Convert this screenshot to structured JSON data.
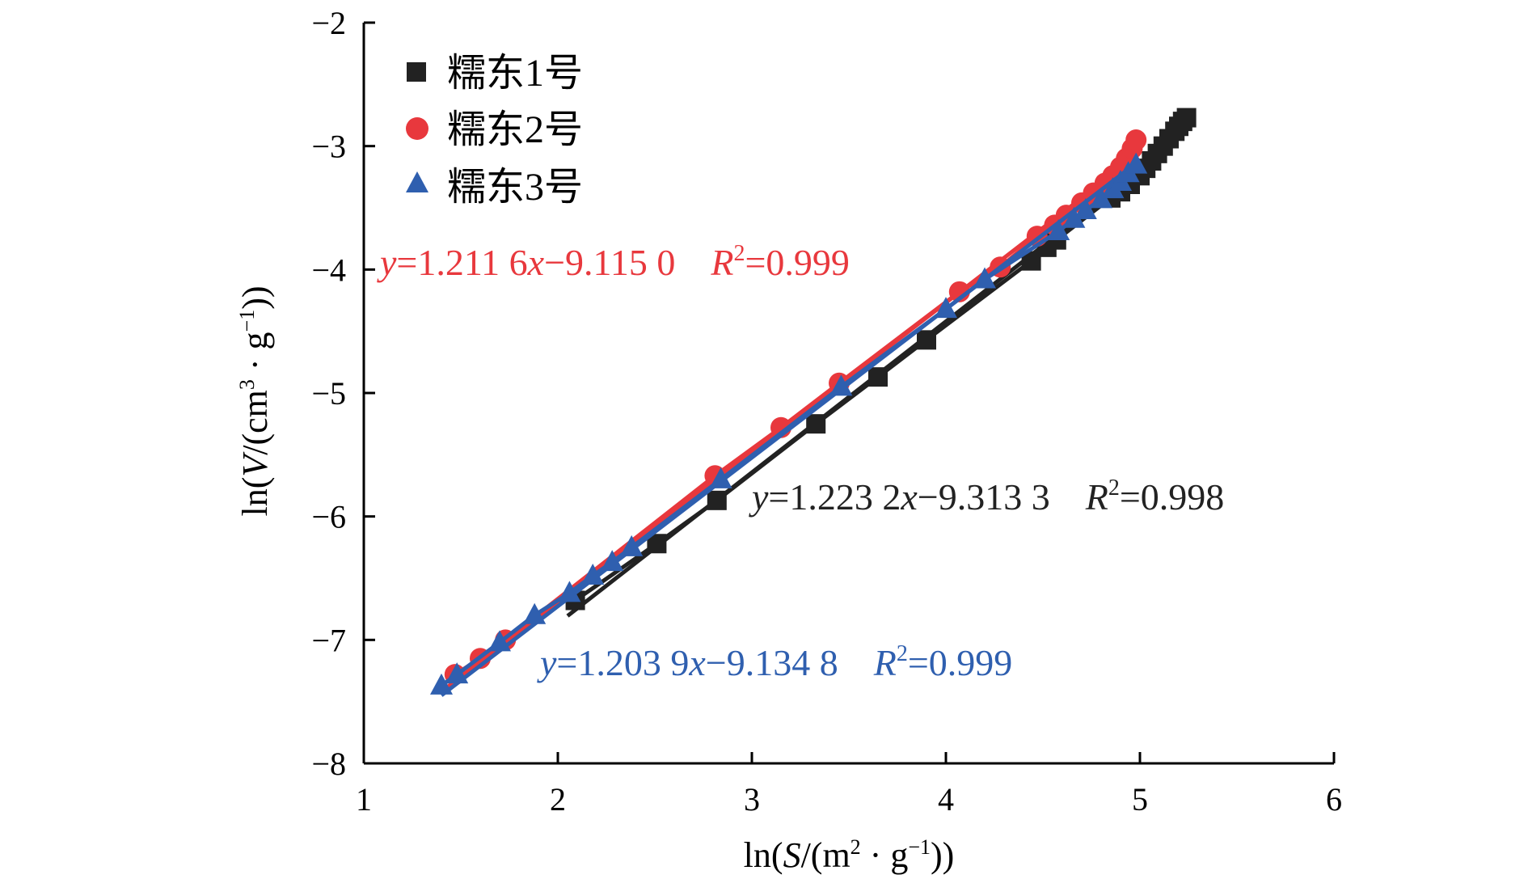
{
  "chart_data": {
    "type": "scatter",
    "title": "",
    "xlim": [
      1,
      6
    ],
    "ylim": [
      -8,
      -2
    ],
    "x_ticks": [
      "1",
      "2",
      "3",
      "4",
      "5",
      "6"
    ],
    "y_ticks": [
      "−8",
      "−7",
      "−6",
      "−5",
      "−4",
      "−3",
      "−2"
    ],
    "grid": false,
    "legend_position": "top-left",
    "xlabel": {
      "pre": "ln(",
      "var": "S",
      "mid": "/(m",
      "sup1": "2",
      "dot": " · g",
      "sup2": "−1",
      "post": "))"
    },
    "ylabel": {
      "pre": "ln(",
      "var": "V",
      "mid": "/(cm",
      "sup1": "3",
      "dot": " · g",
      "sup2": "−1",
      "post": "))"
    },
    "series": [
      {
        "name": "糯东1号",
        "marker": "square",
        "color": "#222222",
        "x": [
          2.09,
          2.51,
          2.82,
          3.33,
          3.65,
          3.9,
          4.44,
          4.52,
          4.57,
          4.85,
          4.9,
          4.95,
          5.0,
          5.03,
          5.06,
          5.09,
          5.12,
          5.15,
          5.18,
          5.2,
          5.22,
          5.24
        ],
        "y": [
          -6.68,
          -6.22,
          -5.87,
          -5.25,
          -4.87,
          -4.57,
          -3.93,
          -3.82,
          -3.76,
          -3.42,
          -3.37,
          -3.31,
          -3.24,
          -3.18,
          -3.12,
          -3.06,
          -3.0,
          -2.94,
          -2.88,
          -2.84,
          -2.8,
          -2.77
        ],
        "fit": {
          "slope": 1.2232,
          "intercept": -9.3133,
          "x_range": [
            2.05,
            5.15
          ]
        },
        "equation": {
          "y": "y",
          "eq1": "=1.223 2",
          "x": "x",
          "eq2": "−9.313 3",
          "R": "R",
          "sup": "2",
          "r2": "=0.998"
        }
      },
      {
        "name": "糯东2号",
        "marker": "circle",
        "color": "#e8383d",
        "x": [
          1.47,
          1.6,
          1.73,
          2.81,
          3.15,
          3.45,
          4.07,
          4.28,
          4.47,
          4.56,
          4.62,
          4.7,
          4.76,
          4.82,
          4.86,
          4.9,
          4.93,
          4.96,
          4.98
        ],
        "y": [
          -7.28,
          -7.15,
          -7.0,
          -5.67,
          -5.28,
          -4.92,
          -4.18,
          -3.98,
          -3.73,
          -3.64,
          -3.56,
          -3.46,
          -3.38,
          -3.3,
          -3.24,
          -3.17,
          -3.1,
          -3.02,
          -2.95
        ],
        "fit": {
          "slope": 1.2116,
          "intercept": -9.115,
          "x_range": [
            1.42,
            4.98
          ]
        },
        "equation": {
          "y": "y",
          "eq1": "=1.211 6",
          "x": "x",
          "eq2": "−9.115 0",
          "R": "R",
          "sup": "2",
          "r2": "=0.999"
        }
      },
      {
        "name": "糯东3号",
        "marker": "triangle",
        "color": "#2f5faf",
        "x": [
          1.4,
          1.48,
          1.7,
          1.88,
          2.06,
          2.18,
          2.28,
          2.38,
          2.84,
          3.46,
          4.0,
          4.2,
          4.58,
          4.66,
          4.72,
          4.8,
          4.86,
          4.9,
          4.94,
          4.98
        ],
        "y": [
          -7.37,
          -7.28,
          -7.02,
          -6.8,
          -6.62,
          -6.48,
          -6.37,
          -6.25,
          -5.7,
          -4.95,
          -4.32,
          -4.08,
          -3.69,
          -3.59,
          -3.52,
          -3.43,
          -3.35,
          -3.29,
          -3.22,
          -3.15
        ],
        "fit": {
          "slope": 1.2039,
          "intercept": -9.1348,
          "x_range": [
            1.4,
            5.0
          ]
        },
        "equation": {
          "y": "y",
          "eq1": "=1.203 9",
          "x": "x",
          "eq2": "−9.134 8",
          "R": "R",
          "sup": "2",
          "r2": "=0.999"
        }
      }
    ]
  }
}
